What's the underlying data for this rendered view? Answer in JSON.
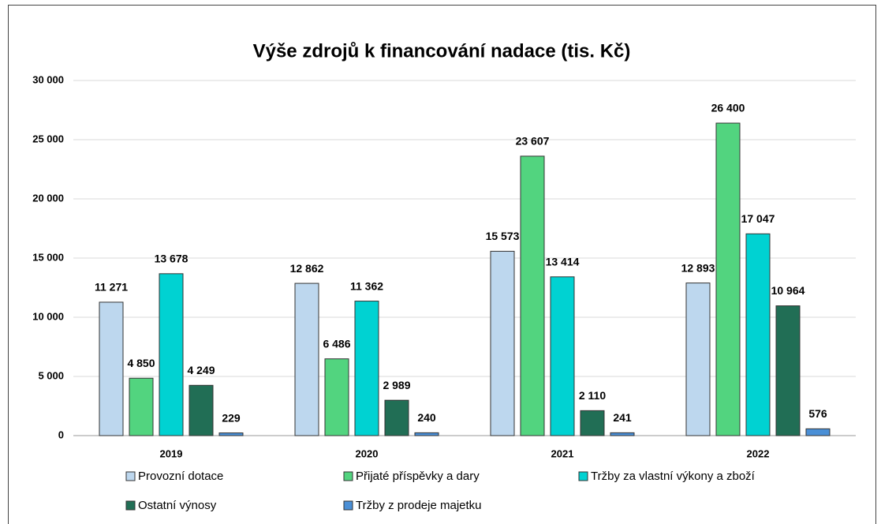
{
  "chart_data": {
    "type": "bar",
    "title": "Výše zdrojů k financování nadace (tis. Kč)",
    "categories": [
      "2019",
      "2020",
      "2021",
      "2022"
    ],
    "series": [
      {
        "name": "Provozní dotace",
        "color": "#bdd7ee",
        "values": [
          11271,
          12862,
          15573,
          12893
        ],
        "value_labels": [
          "11 271",
          "12 862",
          "15 573",
          "12 893"
        ]
      },
      {
        "name": "Přijaté příspěvky a dary",
        "color": "#52d47f",
        "values": [
          4850,
          6486,
          23607,
          26400
        ],
        "value_labels": [
          "4 850",
          "6 486",
          "23 607",
          "26 400"
        ]
      },
      {
        "name": "Tržby za vlastní výkony a zboží",
        "color": "#00d2d2",
        "values": [
          13678,
          11362,
          13414,
          17047
        ],
        "value_labels": [
          "13 678",
          "11 362",
          "13 414",
          "17 047"
        ]
      },
      {
        "name": "Ostatní výnosy",
        "color": "#216e55",
        "values": [
          4249,
          2989,
          2110,
          10964
        ],
        "value_labels": [
          "4 249",
          "2 989",
          "2 110",
          "10 964"
        ]
      },
      {
        "name": "Tržby z prodeje majetku",
        "color": "#4a8fd6",
        "values": [
          229,
          240,
          241,
          576
        ],
        "value_labels": [
          "229",
          "240",
          "241",
          "576"
        ]
      }
    ],
    "ylim": [
      0,
      30000
    ],
    "yticks": [
      0,
      {
        "value": 5000,
        "label": "5 000"
      },
      {
        "value": 10000,
        "label": "10 000"
      },
      {
        "value": 15000,
        "label": "15 000"
      },
      {
        "value": 20000,
        "label": "20 000"
      },
      {
        "value": 25000,
        "label": "25 000"
      },
      {
        "value": 30000,
        "label": "30 000"
      }
    ],
    "grid": true,
    "legend": "bottom"
  }
}
